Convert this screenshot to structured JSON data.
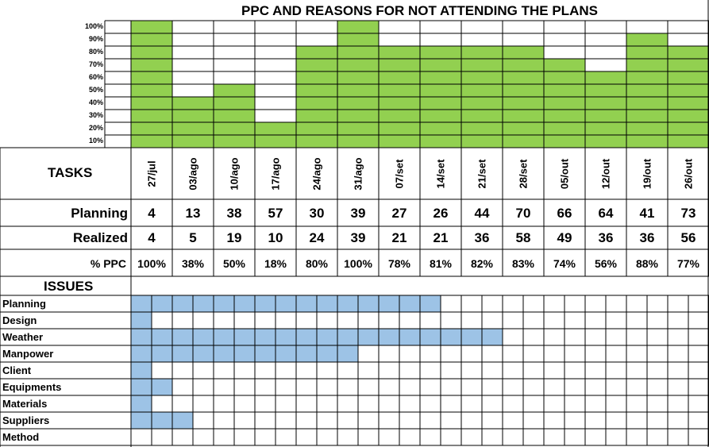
{
  "chart_data": {
    "type": "bar",
    "title": "PPC AND REASONS FOR NOT ATTENDING THE PLANS",
    "y_ticks": [
      "100%",
      "90%",
      "80%",
      "70%",
      "60%",
      "50%",
      "40%",
      "30%",
      "20%",
      "10%"
    ],
    "ylim": [
      0,
      100
    ],
    "categories": [
      "27/jul",
      "03/ago",
      "10/ago",
      "17/ago",
      "24/ago",
      "31/ago",
      "07/set",
      "14/set",
      "21/set",
      "28/set",
      "05/out",
      "12/out",
      "19/out",
      "26/out"
    ],
    "series": [
      {
        "name": "% PPC",
        "values": [
          100,
          38,
          50,
          18,
          80,
          100,
          78,
          81,
          82,
          83,
          74,
          56,
          88,
          77
        ]
      }
    ],
    "bar_color": "#92d050",
    "grid": true
  },
  "table": {
    "tasks_label": "TASKS",
    "planning_label": "Planning",
    "realized_label": "Realized",
    "ppc_label": "% PPC",
    "planning": [
      "4",
      "13",
      "38",
      "57",
      "30",
      "39",
      "27",
      "26",
      "44",
      "70",
      "66",
      "64",
      "41",
      "73"
    ],
    "realized": [
      "4",
      "5",
      "19",
      "10",
      "24",
      "39",
      "21",
      "21",
      "36",
      "58",
      "49",
      "36",
      "36",
      "56"
    ],
    "ppc": [
      "100%",
      "38%",
      "50%",
      "18%",
      "80%",
      "100%",
      "78%",
      "81%",
      "82%",
      "83%",
      "74%",
      "56%",
      "88%",
      "77%"
    ]
  },
  "issues": {
    "label": "ISSUES",
    "fill_color": "#9dc3e6",
    "rows": [
      {
        "name": "Planning",
        "filled_cells": 15
      },
      {
        "name": "Design",
        "filled_cells": 1
      },
      {
        "name": "Weather",
        "filled_cells": 18
      },
      {
        "name": "Manpower",
        "filled_cells": 11
      },
      {
        "name": "Client",
        "filled_cells": 1
      },
      {
        "name": "Equipments",
        "filled_cells": 2
      },
      {
        "name": "Materials",
        "filled_cells": 1
      },
      {
        "name": "Suppliers",
        "filled_cells": 3
      },
      {
        "name": "Method",
        "filled_cells": 0
      }
    ]
  }
}
